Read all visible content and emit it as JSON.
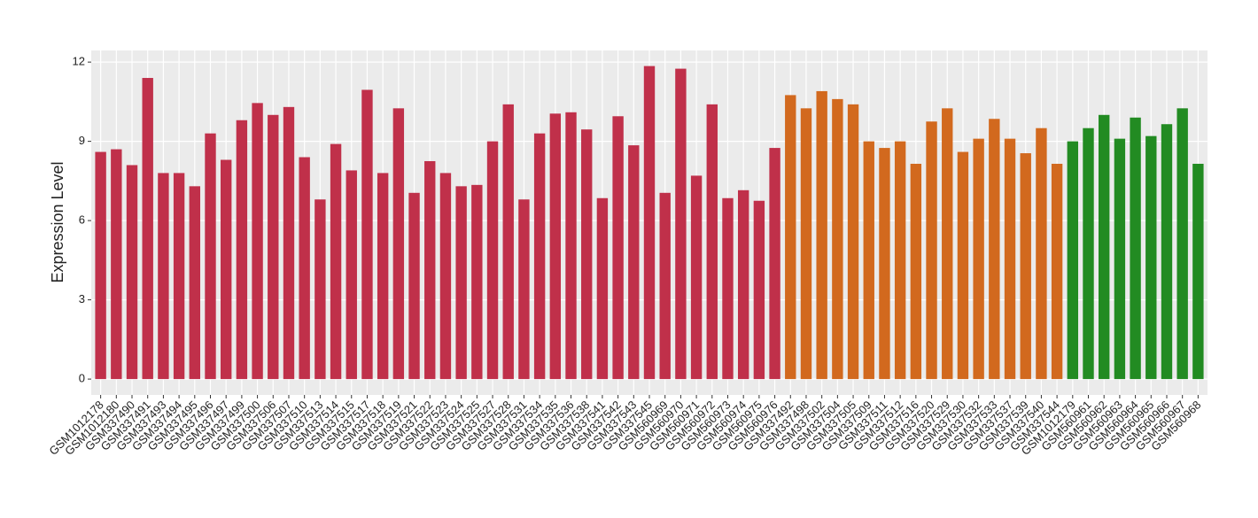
{
  "chart_data": {
    "type": "bar",
    "y_label": "Expression Level",
    "categories": [
      "GSM1012178",
      "GSM1012180",
      "GSM337490",
      "GSM337491",
      "GSM337493",
      "GSM337494",
      "GSM337495",
      "GSM337496",
      "GSM337497",
      "GSM337499",
      "GSM337500",
      "GSM337506",
      "GSM337507",
      "GSM337510",
      "GSM337513",
      "GSM337514",
      "GSM337515",
      "GSM337517",
      "GSM337518",
      "GSM337519",
      "GSM337521",
      "GSM337522",
      "GSM337523",
      "GSM337524",
      "GSM337525",
      "GSM337527",
      "GSM337528",
      "GSM337531",
      "GSM337534",
      "GSM337535",
      "GSM337536",
      "GSM337538",
      "GSM337541",
      "GSM337542",
      "GSM337543",
      "GSM337545",
      "GSM560969",
      "GSM560970",
      "GSM560971",
      "GSM560972",
      "GSM560973",
      "GSM560974",
      "GSM560975",
      "GSM560976",
      "GSM337492",
      "GSM337498",
      "GSM337502",
      "GSM337504",
      "GSM337505",
      "GSM337509",
      "GSM337511",
      "GSM337512",
      "GSM337516",
      "GSM337520",
      "GSM337529",
      "GSM337530",
      "GSM337532",
      "GSM337533",
      "GSM337537",
      "GSM337539",
      "GSM337540",
      "GSM337544",
      "GSM1012179",
      "GSM560961",
      "GSM560962",
      "GSM560963",
      "GSM560964",
      "GSM560965",
      "GSM560966",
      "GSM560967",
      "GSM560968"
    ],
    "values": [
      8.6,
      8.7,
      8.1,
      11.4,
      7.8,
      7.8,
      7.3,
      9.3,
      8.3,
      9.8,
      10.45,
      10.0,
      10.3,
      8.4,
      6.8,
      8.9,
      7.9,
      10.95,
      7.8,
      10.25,
      7.05,
      8.25,
      7.8,
      7.3,
      7.35,
      9.0,
      10.4,
      6.8,
      9.3,
      10.05,
      10.1,
      9.45,
      6.85,
      9.95,
      8.85,
      11.85,
      7.05,
      11.75,
      7.7,
      10.4,
      6.85,
      7.15,
      6.75,
      8.75,
      10.75,
      10.25,
      10.9,
      10.6,
      10.4,
      9.0,
      8.75,
      9.0,
      8.15,
      9.75,
      10.25,
      8.6,
      9.1,
      9.85,
      9.1,
      8.55,
      9.5,
      8.15,
      9.0,
      9.5,
      10.0,
      9.1,
      9.9,
      9.2,
      9.65,
      10.25,
      8.15
    ],
    "colors": [
      "#c0304a",
      "#c0304a",
      "#c0304a",
      "#c0304a",
      "#c0304a",
      "#c0304a",
      "#c0304a",
      "#c0304a",
      "#c0304a",
      "#c0304a",
      "#c0304a",
      "#c0304a",
      "#c0304a",
      "#c0304a",
      "#c0304a",
      "#c0304a",
      "#c0304a",
      "#c0304a",
      "#c0304a",
      "#c0304a",
      "#c0304a",
      "#c0304a",
      "#c0304a",
      "#c0304a",
      "#c0304a",
      "#c0304a",
      "#c0304a",
      "#c0304a",
      "#c0304a",
      "#c0304a",
      "#c0304a",
      "#c0304a",
      "#c0304a",
      "#c0304a",
      "#c0304a",
      "#c0304a",
      "#c0304a",
      "#c0304a",
      "#c0304a",
      "#c0304a",
      "#c0304a",
      "#c0304a",
      "#c0304a",
      "#c0304a",
      "#d2691e",
      "#d2691e",
      "#d2691e",
      "#d2691e",
      "#d2691e",
      "#d2691e",
      "#d2691e",
      "#d2691e",
      "#d2691e",
      "#d2691e",
      "#d2691e",
      "#d2691e",
      "#d2691e",
      "#d2691e",
      "#d2691e",
      "#d2691e",
      "#d2691e",
      "#d2691e",
      "#228b22",
      "#228b22",
      "#228b22",
      "#228b22",
      "#228b22",
      "#228b22",
      "#228b22",
      "#228b22",
      "#228b22"
    ],
    "ylim": [
      -0.6,
      12.44
    ],
    "yticks": [
      0,
      3,
      6,
      9,
      12
    ],
    "grid": true
  }
}
